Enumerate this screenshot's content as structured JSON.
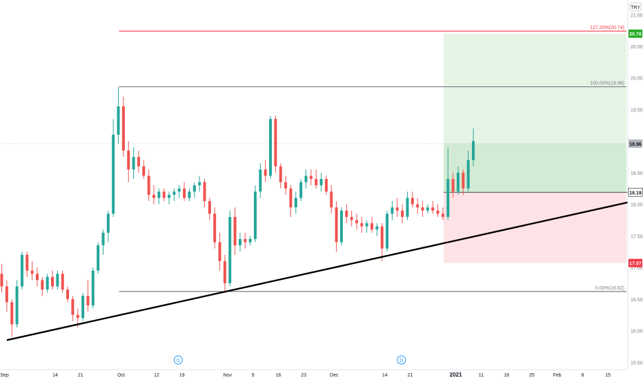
{
  "chart_data": {
    "type": "candlestick",
    "currency_label": "TRY",
    "colors": {
      "up": "#26a69a",
      "down": "#ef5350",
      "fib_line": "#787b86",
      "fib_extension": "#f23645",
      "trendline": "#000000",
      "target_zone": "#4caf50",
      "stop_zone": "#f23645",
      "target_badge": "#22ab22",
      "stop_badge": "#f23645",
      "last_price_badge": "#b2b5be",
      "entry_badge": "#131722"
    },
    "y_axis": {
      "ticks": [
        "21.00",
        "20.50",
        "20.00",
        "19.50",
        "19.00",
        "18.50",
        "18.00",
        "17.50",
        "17.00",
        "16.50",
        "16.00",
        "15.50"
      ],
      "range": [
        15.35,
        21.2
      ]
    },
    "x_axis": {
      "ticks": [
        {
          "label": "Sep",
          "bar": 0
        },
        {
          "label": "14",
          "bar": 10
        },
        {
          "label": "21",
          "bar": 15
        },
        {
          "label": "Oct",
          "bar": 23
        },
        {
          "label": "12",
          "bar": 30
        },
        {
          "label": "19",
          "bar": 35
        },
        {
          "label": "Nov",
          "bar": 44
        },
        {
          "label": "9",
          "bar": 49
        },
        {
          "label": "16",
          "bar": 54
        },
        {
          "label": "23",
          "bar": 59
        },
        {
          "label": "Dec",
          "bar": 65
        },
        {
          "label": "14",
          "bar": 75
        },
        {
          "label": "21",
          "bar": 80
        },
        {
          "label": "2021",
          "bar": 89
        },
        {
          "label": "11",
          "bar": 94
        },
        {
          "label": "18",
          "bar": 99
        },
        {
          "label": "25",
          "bar": 104
        },
        {
          "label": "Feb",
          "bar": 109
        },
        {
          "label": "8",
          "bar": 114
        },
        {
          "label": "15",
          "bar": 119
        }
      ]
    },
    "candles": [
      [
        16.9,
        17.05,
        16.6,
        16.7
      ],
      [
        16.7,
        16.8,
        16.3,
        16.45
      ],
      [
        16.45,
        16.5,
        15.9,
        16.1
      ],
      [
        16.1,
        16.8,
        16.05,
        16.7
      ],
      [
        16.7,
        17.25,
        16.65,
        17.2
      ],
      [
        17.2,
        17.25,
        16.85,
        16.95
      ],
      [
        16.95,
        17.1,
        16.8,
        16.9
      ],
      [
        16.9,
        17.0,
        16.7,
        16.8
      ],
      [
        16.8,
        16.85,
        16.55,
        16.65
      ],
      [
        16.65,
        16.9,
        16.6,
        16.85
      ],
      [
        16.85,
        16.95,
        16.65,
        16.7
      ],
      [
        16.7,
        16.95,
        16.65,
        16.9
      ],
      [
        16.9,
        16.95,
        16.6,
        16.65
      ],
      [
        16.65,
        16.7,
        16.45,
        16.5
      ],
      [
        16.5,
        16.55,
        16.15,
        16.25
      ],
      [
        16.25,
        16.35,
        16.05,
        16.2
      ],
      [
        16.2,
        16.6,
        16.15,
        16.55
      ],
      [
        16.55,
        16.8,
        16.3,
        16.4
      ],
      [
        16.4,
        17.0,
        16.35,
        16.95
      ],
      [
        16.95,
        17.4,
        16.9,
        17.35
      ],
      [
        17.35,
        17.6,
        17.2,
        17.55
      ],
      [
        17.55,
        17.9,
        17.4,
        17.85
      ],
      [
        17.85,
        19.35,
        17.8,
        19.1
      ],
      [
        19.1,
        19.85,
        18.95,
        19.55
      ],
      [
        19.55,
        19.7,
        18.75,
        18.85
      ],
      [
        18.85,
        19.0,
        18.35,
        18.55
      ],
      [
        18.55,
        18.9,
        18.4,
        18.75
      ],
      [
        18.75,
        18.85,
        18.5,
        18.6
      ],
      [
        18.6,
        18.7,
        18.4,
        18.45
      ],
      [
        18.45,
        18.55,
        18.05,
        18.15
      ],
      [
        18.15,
        18.3,
        18.0,
        18.1
      ],
      [
        18.1,
        18.25,
        18.0,
        18.2
      ],
      [
        18.2,
        18.25,
        18.05,
        18.1
      ],
      [
        18.1,
        18.2,
        18.0,
        18.15
      ],
      [
        18.15,
        18.25,
        18.05,
        18.2
      ],
      [
        18.2,
        18.3,
        18.1,
        18.25
      ],
      [
        18.25,
        18.35,
        18.05,
        18.1
      ],
      [
        18.1,
        18.25,
        18.05,
        18.2
      ],
      [
        18.2,
        18.35,
        18.1,
        18.3
      ],
      [
        18.3,
        18.45,
        18.2,
        18.35
      ],
      [
        18.35,
        18.4,
        17.95,
        18.05
      ],
      [
        18.05,
        18.1,
        17.75,
        17.85
      ],
      [
        17.85,
        17.95,
        17.3,
        17.4
      ],
      [
        17.4,
        17.55,
        16.95,
        17.1
      ],
      [
        17.1,
        17.2,
        16.6,
        16.75
      ],
      [
        16.75,
        17.9,
        16.7,
        17.8
      ],
      [
        17.8,
        17.95,
        17.2,
        17.35
      ],
      [
        17.35,
        17.55,
        17.25,
        17.45
      ],
      [
        17.45,
        17.55,
        17.3,
        17.4
      ],
      [
        17.4,
        17.5,
        17.35,
        17.45
      ],
      [
        17.45,
        18.3,
        17.4,
        18.2
      ],
      [
        18.2,
        18.65,
        18.1,
        18.55
      ],
      [
        18.55,
        18.7,
        18.35,
        18.45
      ],
      [
        18.45,
        19.4,
        18.4,
        19.35
      ],
      [
        19.35,
        19.4,
        18.5,
        18.6
      ],
      [
        18.6,
        18.65,
        18.25,
        18.35
      ],
      [
        18.35,
        18.45,
        18.15,
        18.25
      ],
      [
        18.25,
        18.3,
        17.8,
        17.95
      ],
      [
        17.95,
        18.2,
        17.85,
        18.1
      ],
      [
        18.1,
        18.4,
        18.05,
        18.35
      ],
      [
        18.35,
        18.55,
        18.25,
        18.45
      ],
      [
        18.45,
        18.55,
        18.3,
        18.4
      ],
      [
        18.4,
        18.55,
        18.25,
        18.3
      ],
      [
        18.3,
        18.5,
        18.2,
        18.4
      ],
      [
        18.4,
        18.45,
        18.15,
        18.2
      ],
      [
        18.2,
        18.3,
        17.85,
        17.95
      ],
      [
        17.95,
        18.05,
        17.25,
        17.4
      ],
      [
        17.4,
        17.95,
        17.35,
        17.9
      ],
      [
        17.9,
        18.0,
        17.7,
        17.8
      ],
      [
        17.8,
        17.9,
        17.65,
        17.75
      ],
      [
        17.75,
        17.85,
        17.6,
        17.7
      ],
      [
        17.7,
        17.8,
        17.55,
        17.65
      ],
      [
        17.65,
        17.75,
        17.55,
        17.7
      ],
      [
        17.7,
        17.8,
        17.55,
        17.6
      ],
      [
        17.6,
        17.7,
        17.5,
        17.65
      ],
      [
        17.65,
        17.7,
        17.1,
        17.3
      ],
      [
        17.3,
        17.9,
        17.25,
        17.85
      ],
      [
        17.85,
        18.05,
        17.75,
        17.95
      ],
      [
        17.95,
        18.1,
        17.8,
        17.9
      ],
      [
        17.9,
        18.0,
        17.7,
        17.8
      ],
      [
        17.8,
        18.2,
        17.75,
        18.1
      ],
      [
        18.1,
        18.2,
        17.95,
        18.0
      ],
      [
        18.0,
        18.1,
        17.85,
        17.95
      ],
      [
        17.95,
        18.05,
        17.8,
        17.9
      ],
      [
        17.9,
        18.0,
        17.85,
        17.95
      ],
      [
        17.95,
        18.05,
        17.85,
        17.9
      ],
      [
        17.9,
        18.0,
        17.8,
        17.85
      ],
      [
        17.85,
        17.95,
        17.75,
        17.8
      ],
      [
        17.8,
        18.9,
        17.75,
        18.4
      ],
      [
        18.4,
        18.5,
        18.1,
        18.2
      ],
      [
        18.2,
        18.6,
        18.15,
        18.5
      ],
      [
        18.5,
        18.55,
        18.15,
        18.25
      ],
      [
        18.25,
        18.85,
        18.2,
        18.7
      ],
      [
        18.7,
        19.2,
        18.6,
        19.0
      ]
    ],
    "fibonacci": {
      "levels": [
        {
          "label": "127.20%(20.74)",
          "value": 20.74,
          "type": "extension"
        },
        {
          "label": "100.00%(19.86)",
          "value": 19.86,
          "type": "level"
        },
        {
          "label": "0.00%(16.62)",
          "value": 16.62,
          "type": "level"
        }
      ],
      "start_bar": 23
    },
    "trendline": {
      "start": {
        "bar": 1,
        "value": 15.85
      },
      "end": {
        "bar": 121,
        "value": 18.03
      }
    },
    "position": {
      "start_bar": 87,
      "entry": 18.19,
      "target": 20.7,
      "stop": 17.07
    },
    "last_price": 18.96,
    "price_labels": {
      "target": "20.70",
      "last": "18.96",
      "entry": "18.19",
      "stop": "17.07"
    },
    "event_markers": [
      {
        "bar": 34,
        "label": "D"
      },
      {
        "bar": 78,
        "label": "D"
      }
    ]
  }
}
